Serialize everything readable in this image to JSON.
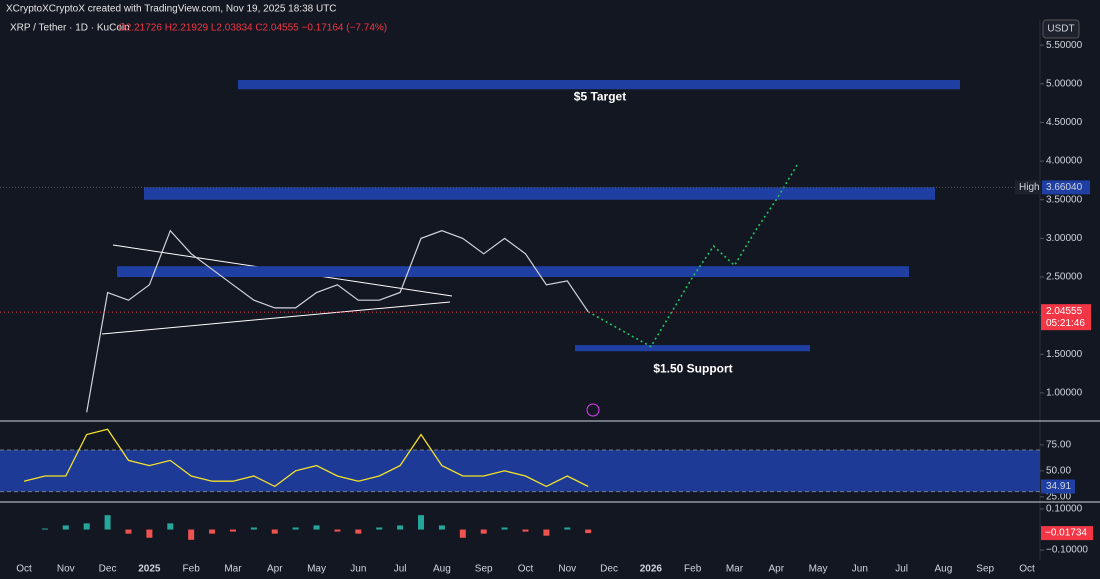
{
  "header": {
    "credit": "XCryptoXCryptoX created with TradingView.com, Nov 19, 2025 18:38 UTC",
    "symbol": "XRP / Tether · 1D · KuCoin",
    "ohlc": "O2.21726 H2.21929 L2.03834 C2.04555 −0.17164 (−7.74%)"
  },
  "chart_data": [
    {
      "type": "line",
      "currency": "USDT",
      "categories": [
        "Oct",
        null,
        "Nov",
        null,
        "Dec",
        null,
        "2025",
        null,
        "Feb",
        null,
        "Mar",
        null,
        "Apr",
        null,
        "May",
        null,
        "Jun",
        null,
        "Jul",
        null,
        "Aug",
        null,
        "Sep",
        null,
        "Oct",
        null,
        "Nov",
        null,
        "Dec",
        null,
        "2026",
        null,
        "Feb",
        null,
        "Mar",
        null,
        "Apr",
        null,
        "May",
        null,
        "Jun",
        null,
        "Jul",
        null,
        "Aug",
        null,
        "Sep",
        null,
        "Oct"
      ],
      "ylim": [
        0.65,
        5.8
      ],
      "yticks": [
        {
          "value": 1.0,
          "label": "1.00000"
        },
        {
          "value": 1.5,
          "label": "1.50000"
        },
        {
          "value": 2.0,
          "label": "2.00000"
        },
        {
          "value": 2.5,
          "label": "2.50000"
        },
        {
          "value": 3.0,
          "label": "3.00000"
        },
        {
          "value": 3.5,
          "label": "3.50000"
        },
        {
          "value": 4.0,
          "label": "4.00000"
        },
        {
          "value": 4.5,
          "label": "4.50000"
        },
        {
          "value": 5.0,
          "label": "5.00000"
        },
        {
          "value": 5.5,
          "label": "5.50000"
        }
      ],
      "series": [
        {
          "color": "#d1d4dc",
          "dash": false,
          "values": [
            null,
            null,
            null,
            0.75,
            2.3,
            2.2,
            2.4,
            3.1,
            2.8,
            2.6,
            2.4,
            2.2,
            2.1,
            2.1,
            2.3,
            2.4,
            2.2,
            2.2,
            2.3,
            3.0,
            3.1,
            3.0,
            2.8,
            3.0,
            2.8,
            2.4,
            2.45,
            2.05,
            null,
            null,
            null,
            null,
            null,
            null,
            null,
            null,
            null,
            null,
            null,
            null,
            null,
            null,
            null,
            null,
            null,
            null,
            null,
            null,
            null
          ]
        },
        {
          "color": "#22c55e",
          "dash": true,
          "values": [
            null,
            null,
            null,
            null,
            null,
            null,
            null,
            null,
            null,
            null,
            null,
            null,
            null,
            null,
            null,
            null,
            null,
            null,
            null,
            null,
            null,
            null,
            null,
            null,
            null,
            null,
            null,
            2.05,
            1.9,
            1.75,
            1.6,
            2.05,
            2.5,
            2.9,
            2.65,
            3.1,
            3.5,
            3.95,
            null,
            null,
            null,
            null,
            null,
            null,
            null,
            null,
            null,
            null,
            null
          ]
        }
      ],
      "zones": [
        {
          "label": "$5 Target",
          "range": [
            4.93,
            5.05
          ],
          "color": "#1f3fa3"
        },
        {
          "range": [
            3.5,
            3.66
          ],
          "color": "#1f3fa3"
        },
        {
          "range": [
            2.5,
            2.64
          ],
          "color": "#1f3fa3"
        },
        {
          "label": "$1.50 Support",
          "range": [
            1.54,
            1.62
          ],
          "color": "#1f3fa3"
        }
      ],
      "high": {
        "label": "High",
        "value": 3.6604,
        "value_label": "3.66040"
      },
      "last": {
        "value": 2.04555,
        "value_label": "2.04555",
        "countdown": "05:21:46"
      }
    },
    {
      "type": "rsi",
      "ylim": [
        20,
        97
      ],
      "yticks": [
        {
          "value": 25,
          "label": "25.00"
        },
        {
          "value": 50,
          "label": "50.00"
        },
        {
          "value": 75,
          "label": "75.00"
        }
      ],
      "band": [
        30,
        70
      ],
      "color": "#f5e12a",
      "values": [
        40,
        45,
        45,
        85,
        90,
        60,
        55,
        60,
        45,
        40,
        40,
        45,
        35,
        50,
        55,
        45,
        40,
        45,
        55,
        85,
        55,
        45,
        45,
        50,
        45,
        35,
        45,
        34.91,
        null,
        null,
        null,
        null,
        null,
        null,
        null,
        null,
        null,
        null,
        null,
        null,
        null,
        null,
        null,
        null,
        null,
        null,
        null,
        null,
        null
      ],
      "last": 34.91
    },
    {
      "type": "histogram",
      "ylim": [
        -0.158,
        0.134
      ],
      "yticks": [
        {
          "value": -0.1,
          "label": "−0.10000"
        },
        {
          "value": 0.1,
          "label": "0.10000"
        }
      ],
      "colors": [
        "#26a69a",
        "#ef5350"
      ],
      "values": [
        0,
        0.005,
        0.02,
        0.03,
        0.07,
        -0.02,
        -0.04,
        0.03,
        -0.05,
        -0.02,
        -0.01,
        0.01,
        -0.02,
        0.01,
        0.02,
        -0.01,
        -0.02,
        0.01,
        0.02,
        0.07,
        0.02,
        -0.04,
        -0.02,
        0.01,
        -0.01,
        -0.03,
        0.01,
        -0.01734,
        null,
        null,
        null,
        null,
        null,
        null,
        null,
        null,
        null,
        null,
        null,
        null,
        null,
        null,
        null,
        null,
        null,
        null,
        null,
        null,
        null
      ],
      "last": {
        "value": -0.01734,
        "label": "−0.01734"
      }
    }
  ]
}
